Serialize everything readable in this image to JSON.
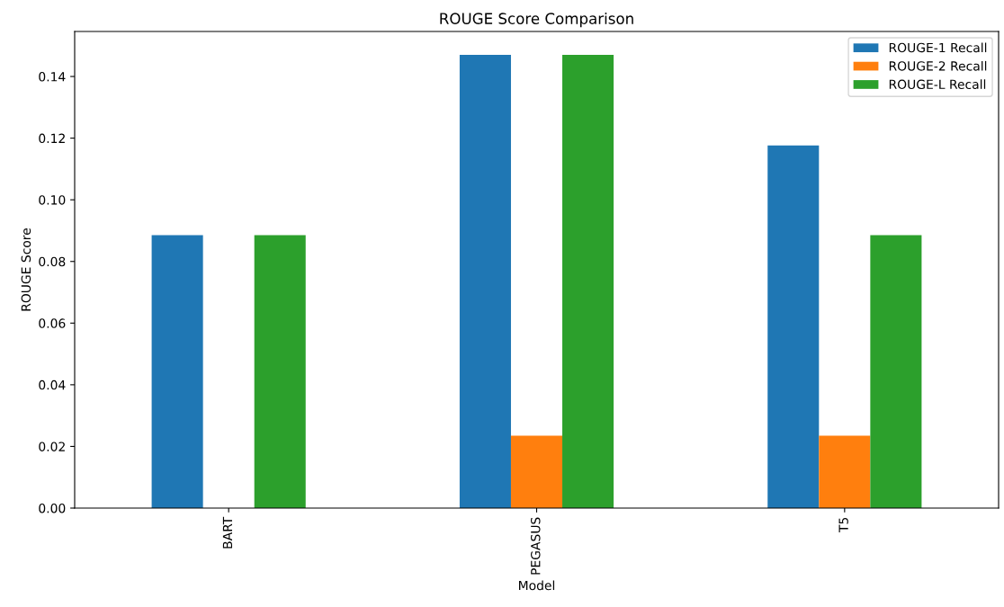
{
  "chart_data": {
    "type": "bar",
    "title": "ROUGE Score Comparison",
    "xlabel": "Model",
    "ylabel": "ROUGE Score",
    "categories": [
      "BART",
      "PEGASUS",
      "T5"
    ],
    "series": [
      {
        "name": "ROUGE-1 Recall",
        "color": "#1f77b4",
        "values": [
          0.0885,
          0.147,
          0.1176
        ]
      },
      {
        "name": "ROUGE-2 Recall",
        "color": "#ff7f0e",
        "values": [
          0,
          0.0235,
          0.0235
        ]
      },
      {
        "name": "ROUGE-L Recall",
        "color": "#2ca02c",
        "values": [
          0.0885,
          0.147,
          0.0885
        ]
      }
    ],
    "ylim": [
      0,
      0.1546
    ],
    "yticks": [
      {
        "value": 0,
        "label": "0.00"
      },
      {
        "value": 0.02,
        "label": "0.02"
      },
      {
        "value": 0.04,
        "label": "0.04"
      },
      {
        "value": 0.06,
        "label": "0.06"
      },
      {
        "value": 0.08,
        "label": "0.08"
      },
      {
        "value": 0.1,
        "label": "0.10"
      },
      {
        "value": 0.12,
        "label": "0.12"
      },
      {
        "value": 0.14,
        "label": "0.14"
      }
    ],
    "grid": false,
    "legend": "top right"
  }
}
